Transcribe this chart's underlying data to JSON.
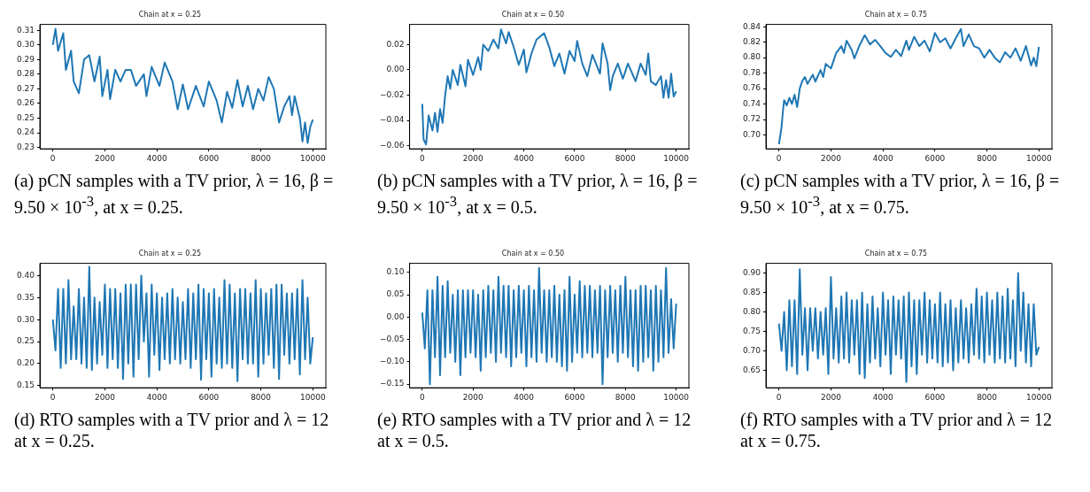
{
  "chart_data": [
    {
      "type": "line",
      "title": "Chain at x = 0.25",
      "marker": "none",
      "xlim": [
        -500,
        10500
      ],
      "xticks": [
        0,
        2000,
        4000,
        6000,
        8000,
        10000
      ],
      "ylim": [
        0.229,
        0.314
      ],
      "yticks": [
        {
          "value": 0.23,
          "label": "0.23"
        },
        {
          "value": 0.24,
          "label": "0.24"
        },
        {
          "value": 0.25,
          "label": "0.25"
        },
        {
          "value": 0.26,
          "label": "0.26"
        },
        {
          "value": 0.27,
          "label": "0.27"
        },
        {
          "value": 0.28,
          "label": "0.28"
        },
        {
          "value": 0.29,
          "label": "0.29"
        },
        {
          "value": 0.3,
          "label": "0.30"
        },
        {
          "value": 0.31,
          "label": "0.31"
        }
      ],
      "x": [
        0,
        100,
        200,
        400,
        500,
        700,
        800,
        1000,
        1200,
        1400,
        1600,
        1800,
        1900,
        2100,
        2200,
        2400,
        2600,
        2800,
        3000,
        3200,
        3500,
        3600,
        3800,
        4100,
        4300,
        4600,
        4800,
        5000,
        5200,
        5500,
        5800,
        6000,
        6300,
        6500,
        6700,
        6900,
        7100,
        7300,
        7500,
        7700,
        7900,
        8100,
        8300,
        8500,
        8700,
        8900,
        9100,
        9200,
        9300,
        9500,
        9600,
        9700,
        9800,
        9900,
        10000
      ],
      "series": [
        {
          "color": "#1f77b4",
          "values": [
            0.3,
            0.311,
            0.296,
            0.308,
            0.283,
            0.296,
            0.275,
            0.267,
            0.29,
            0.293,
            0.275,
            0.292,
            0.265,
            0.283,
            0.263,
            0.283,
            0.275,
            0.283,
            0.283,
            0.272,
            0.28,
            0.265,
            0.285,
            0.272,
            0.288,
            0.275,
            0.256,
            0.273,
            0.256,
            0.272,
            0.258,
            0.275,
            0.262,
            0.247,
            0.268,
            0.257,
            0.276,
            0.258,
            0.272,
            0.256,
            0.27,
            0.262,
            0.278,
            0.27,
            0.247,
            0.258,
            0.265,
            0.252,
            0.265,
            0.25,
            0.234,
            0.247,
            0.233,
            0.244,
            0.249
          ]
        }
      ],
      "annotations": [
        "(a) pCN samples with a TV prior, λ = 16, β = 9.50 × 10$^{-3}$, at x = 0.25."
      ]
    },
    {
      "type": "line",
      "title": "Chain at x = 0.50",
      "marker": "none",
      "xlim": [
        -500,
        10500
      ],
      "xticks": [
        0,
        2000,
        4000,
        6000,
        8000,
        10000
      ],
      "ylim": [
        -0.0625,
        0.036
      ],
      "yticks": [
        {
          "value": -0.06,
          "label": "−0.06"
        },
        {
          "value": -0.04,
          "label": "−0.04"
        },
        {
          "value": -0.02,
          "label": "−0.02"
        },
        {
          "value": 0,
          "label": "0.00"
        },
        {
          "value": 0.02,
          "label": "0.02"
        }
      ],
      "x": [
        0,
        50,
        150,
        250,
        400,
        500,
        600,
        700,
        800,
        900,
        1000,
        1100,
        1200,
        1400,
        1500,
        1700,
        1800,
        2000,
        2200,
        2300,
        2400,
        2600,
        2800,
        3000,
        3100,
        3300,
        3400,
        3600,
        3800,
        4000,
        4100,
        4300,
        4500,
        4800,
        5000,
        5200,
        5400,
        5600,
        5800,
        6000,
        6100,
        6300,
        6500,
        6700,
        7000,
        7100,
        7300,
        7400,
        7500,
        7700,
        7900,
        8100,
        8400,
        8600,
        8800,
        8900,
        9000,
        9200,
        9400,
        9500,
        9600,
        9700,
        9800,
        9900,
        10000
      ],
      "series": [
        {
          "color": "#1f77b4",
          "values": [
            -0.027,
            -0.055,
            -0.059,
            -0.036,
            -0.048,
            -0.034,
            -0.049,
            -0.031,
            -0.042,
            -0.02,
            -0.005,
            -0.015,
            0.0,
            -0.012,
            0.004,
            -0.013,
            0.008,
            -0.004,
            0.01,
            0.0,
            0.02,
            0.015,
            0.024,
            0.017,
            0.032,
            0.021,
            0.03,
            0.018,
            0.004,
            0.016,
            -0.002,
            0.013,
            0.024,
            0.029,
            0.018,
            0.003,
            0.013,
            -0.003,
            0.015,
            0.007,
            0.023,
            0.005,
            -0.005,
            0.012,
            -0.003,
            0.021,
            0.005,
            -0.016,
            -0.005,
            0.005,
            -0.007,
            0.005,
            -0.009,
            0.005,
            -0.004,
            0.013,
            -0.009,
            -0.012,
            -0.005,
            -0.022,
            -0.008,
            -0.022,
            -0.003,
            -0.021,
            -0.017
          ]
        }
      ],
      "annotations": [
        "(b) pCN samples with a TV prior, λ = 16, β = 9.50 × 10$^{-3}$, at x = 0.5."
      ]
    },
    {
      "type": "line",
      "title": "Chain at x = 0.75",
      "marker": "none",
      "xlim": [
        -500,
        10500
      ],
      "xticks": [
        0,
        2000,
        4000,
        6000,
        8000,
        10000
      ],
      "ylim": [
        0.682,
        0.843
      ],
      "yticks": [
        {
          "value": 0.7,
          "label": "0.70"
        },
        {
          "value": 0.72,
          "label": "0.72"
        },
        {
          "value": 0.74,
          "label": "0.74"
        },
        {
          "value": 0.76,
          "label": "0.76"
        },
        {
          "value": 0.78,
          "label": "0.78"
        },
        {
          "value": 0.8,
          "label": "0.80"
        },
        {
          "value": 0.82,
          "label": "0.82"
        },
        {
          "value": 0.84,
          "label": "0.84"
        }
      ],
      "x": [
        0,
        100,
        150,
        200,
        300,
        400,
        500,
        600,
        700,
        800,
        900,
        1000,
        1100,
        1300,
        1400,
        1600,
        1700,
        1800,
        2000,
        2200,
        2400,
        2500,
        2600,
        2800,
        2900,
        3100,
        3300,
        3500,
        3700,
        3900,
        4100,
        4300,
        4500,
        4700,
        4900,
        5000,
        5200,
        5400,
        5600,
        5800,
        6000,
        6200,
        6400,
        6600,
        6800,
        7000,
        7100,
        7300,
        7500,
        7700,
        7900,
        8100,
        8300,
        8500,
        8700,
        8900,
        9100,
        9300,
        9500,
        9700,
        9800,
        9900,
        10000
      ],
      "series": [
        {
          "color": "#1f77b4",
          "values": [
            0.688,
            0.71,
            0.73,
            0.745,
            0.738,
            0.748,
            0.74,
            0.752,
            0.736,
            0.76,
            0.77,
            0.775,
            0.766,
            0.778,
            0.769,
            0.784,
            0.775,
            0.792,
            0.786,
            0.806,
            0.815,
            0.806,
            0.822,
            0.81,
            0.799,
            0.816,
            0.829,
            0.817,
            0.823,
            0.815,
            0.806,
            0.801,
            0.81,
            0.802,
            0.822,
            0.81,
            0.827,
            0.815,
            0.822,
            0.808,
            0.832,
            0.82,
            0.825,
            0.812,
            0.825,
            0.837,
            0.815,
            0.83,
            0.815,
            0.812,
            0.8,
            0.81,
            0.8,
            0.794,
            0.807,
            0.8,
            0.812,
            0.796,
            0.815,
            0.79,
            0.8,
            0.789,
            0.814
          ]
        }
      ],
      "annotations": [
        "(c) pCN samples with a TV prior, λ = 16, β = 9.50 × 10$^{-3}$, at x = 0.75."
      ]
    },
    {
      "type": "line",
      "title": "Chain at x = 0.25",
      "marker": "none",
      "xlim": [
        -500,
        10500
      ],
      "xticks": [
        0,
        2000,
        4000,
        6000,
        8000,
        10000
      ],
      "ylim": [
        0.145,
        0.428
      ],
      "yticks": [
        {
          "value": 0.15,
          "label": "0.15"
        },
        {
          "value": 0.2,
          "label": "0.20"
        },
        {
          "value": 0.25,
          "label": "0.25"
        },
        {
          "value": 0.3,
          "label": "0.30"
        },
        {
          "value": 0.35,
          "label": "0.35"
        },
        {
          "value": 0.4,
          "label": "0.40"
        }
      ],
      "x": [
        0,
        100,
        200,
        300,
        400,
        500,
        600,
        700,
        800,
        900,
        1000,
        1100,
        1200,
        1300,
        1400,
        1500,
        1600,
        1700,
        1800,
        1900,
        2000,
        2100,
        2200,
        2300,
        2400,
        2500,
        2600,
        2700,
        2800,
        2900,
        3000,
        3100,
        3200,
        3300,
        3400,
        3500,
        3600,
        3700,
        3800,
        3900,
        4000,
        4100,
        4200,
        4300,
        4400,
        4500,
        4600,
        4700,
        4800,
        4900,
        5000,
        5100,
        5200,
        5300,
        5400,
        5500,
        5600,
        5700,
        5800,
        5900,
        6000,
        6100,
        6200,
        6300,
        6400,
        6500,
        6600,
        6700,
        6800,
        6900,
        7000,
        7100,
        7200,
        7300,
        7400,
        7500,
        7600,
        7700,
        7800,
        7900,
        8000,
        8100,
        8200,
        8300,
        8400,
        8500,
        8600,
        8700,
        8800,
        8900,
        9000,
        9100,
        9200,
        9300,
        9400,
        9500,
        9600,
        9700,
        9800,
        9900,
        10000
      ],
      "series": [
        {
          "color": "#1f77b4",
          "values": [
            0.3,
            0.23,
            0.37,
            0.19,
            0.37,
            0.2,
            0.39,
            0.21,
            0.33,
            0.21,
            0.37,
            0.2,
            0.35,
            0.19,
            0.42,
            0.185,
            0.35,
            0.2,
            0.34,
            0.22,
            0.38,
            0.19,
            0.37,
            0.21,
            0.37,
            0.19,
            0.36,
            0.165,
            0.38,
            0.2,
            0.38,
            0.17,
            0.38,
            0.21,
            0.4,
            0.25,
            0.36,
            0.17,
            0.38,
            0.22,
            0.36,
            0.185,
            0.35,
            0.21,
            0.36,
            0.2,
            0.37,
            0.21,
            0.35,
            0.2,
            0.34,
            0.21,
            0.37,
            0.19,
            0.36,
            0.21,
            0.38,
            0.163,
            0.37,
            0.21,
            0.36,
            0.17,
            0.37,
            0.2,
            0.35,
            0.19,
            0.39,
            0.2,
            0.38,
            0.19,
            0.36,
            0.16,
            0.37,
            0.21,
            0.37,
            0.2,
            0.36,
            0.2,
            0.39,
            0.17,
            0.37,
            0.2,
            0.36,
            0.22,
            0.37,
            0.19,
            0.38,
            0.165,
            0.38,
            0.22,
            0.36,
            0.2,
            0.36,
            0.21,
            0.37,
            0.175,
            0.39,
            0.21,
            0.35,
            0.2,
            0.26
          ]
        }
      ],
      "annotations": [
        "(d) RTO samples with a TV prior and λ = 12 at x = 0.25."
      ]
    },
    {
      "type": "line",
      "title": "Chain at x = 0.50",
      "marker": "none",
      "xlim": [
        -500,
        10500
      ],
      "xticks": [
        0,
        2000,
        4000,
        6000,
        8000,
        10000
      ],
      "ylim": [
        -0.158,
        0.12
      ],
      "yticks": [
        {
          "value": -0.15,
          "label": "−0.15"
        },
        {
          "value": -0.1,
          "label": "−0.10"
        },
        {
          "value": -0.05,
          "label": "−0.05"
        },
        {
          "value": 0,
          "label": "0.00"
        },
        {
          "value": 0.05,
          "label": "0.05"
        },
        {
          "value": 0.1,
          "label": "0.10"
        }
      ],
      "x": [
        0,
        100,
        200,
        300,
        400,
        500,
        600,
        700,
        800,
        900,
        1000,
        1100,
        1200,
        1300,
        1400,
        1500,
        1600,
        1700,
        1800,
        1900,
        2000,
        2100,
        2200,
        2300,
        2400,
        2500,
        2600,
        2700,
        2800,
        2900,
        3000,
        3100,
        3200,
        3300,
        3400,
        3500,
        3600,
        3700,
        3800,
        3900,
        4000,
        4100,
        4200,
        4300,
        4400,
        4500,
        4600,
        4700,
        4800,
        4900,
        5000,
        5100,
        5200,
        5300,
        5400,
        5500,
        5600,
        5700,
        5800,
        5900,
        6000,
        6100,
        6200,
        6300,
        6400,
        6500,
        6600,
        6700,
        6800,
        6900,
        7000,
        7100,
        7200,
        7300,
        7400,
        7500,
        7600,
        7700,
        7800,
        7900,
        8000,
        8100,
        8200,
        8300,
        8400,
        8500,
        8600,
        8700,
        8800,
        8900,
        9000,
        9100,
        9200,
        9300,
        9400,
        9500,
        9600,
        9700,
        9800,
        9900,
        10000
      ],
      "series": [
        {
          "color": "#1f77b4",
          "values": [
            0.01,
            -0.07,
            0.06,
            -0.15,
            0.06,
            -0.09,
            0.09,
            -0.13,
            0.07,
            -0.09,
            0.08,
            -0.08,
            0.05,
            -0.1,
            0.06,
            -0.13,
            0.06,
            -0.09,
            0.06,
            -0.08,
            0.06,
            -0.09,
            0.05,
            -0.12,
            0.06,
            -0.09,
            0.07,
            -0.08,
            0.06,
            -0.1,
            0.09,
            -0.08,
            0.07,
            -0.09,
            0.07,
            -0.11,
            0.06,
            -0.09,
            0.07,
            -0.08,
            0.06,
            -0.11,
            0.07,
            -0.09,
            0.06,
            -0.1,
            0.11,
            -0.08,
            0.06,
            -0.1,
            0.06,
            -0.09,
            0.07,
            -0.1,
            0.05,
            -0.11,
            0.06,
            -0.12,
            0.09,
            -0.1,
            0.05,
            -0.08,
            0.08,
            -0.09,
            0.07,
            -0.08,
            0.07,
            -0.09,
            0.06,
            -0.08,
            0.07,
            -0.15,
            0.06,
            -0.09,
            0.07,
            -0.08,
            0.06,
            -0.1,
            0.07,
            -0.08,
            0.09,
            -0.09,
            0.06,
            -0.11,
            0.06,
            -0.12,
            0.07,
            -0.1,
            0.07,
            -0.09,
            0.06,
            -0.12,
            0.07,
            -0.1,
            0.06,
            -0.09,
            0.11,
            -0.08,
            0.04,
            -0.07,
            0.03
          ]
        }
      ],
      "annotations": [
        "(e) RTO samples with a TV prior and λ = 12 at x = 0.5."
      ]
    },
    {
      "type": "line",
      "title": "Chain at x = 0.75",
      "marker": "none",
      "xlim": [
        -500,
        10500
      ],
      "xticks": [
        0,
        2000,
        4000,
        6000,
        8000,
        10000
      ],
      "ylim": [
        0.605,
        0.925
      ],
      "yticks": [
        {
          "value": 0.65,
          "label": "0.65"
        },
        {
          "value": 0.7,
          "label": "0.70"
        },
        {
          "value": 0.75,
          "label": "0.75"
        },
        {
          "value": 0.8,
          "label": "0.80"
        },
        {
          "value": 0.85,
          "label": "0.85"
        },
        {
          "value": 0.9,
          "label": "0.90"
        }
      ],
      "x": [
        0,
        100,
        200,
        300,
        400,
        500,
        600,
        700,
        800,
        900,
        1000,
        1100,
        1200,
        1300,
        1400,
        1500,
        1600,
        1700,
        1800,
        1900,
        2000,
        2100,
        2200,
        2300,
        2400,
        2500,
        2600,
        2700,
        2800,
        2900,
        3000,
        3100,
        3200,
        3300,
        3400,
        3500,
        3600,
        3700,
        3800,
        3900,
        4000,
        4100,
        4200,
        4300,
        4400,
        4500,
        4600,
        4700,
        4800,
        4900,
        5000,
        5100,
        5200,
        5300,
        5400,
        5500,
        5600,
        5700,
        5800,
        5900,
        6000,
        6100,
        6200,
        6300,
        6400,
        6500,
        6600,
        6700,
        6800,
        6900,
        7000,
        7100,
        7200,
        7300,
        7400,
        7500,
        7600,
        7700,
        7800,
        7900,
        8000,
        8100,
        8200,
        8300,
        8400,
        8500,
        8600,
        8700,
        8800,
        8900,
        9000,
        9100,
        9200,
        9300,
        9400,
        9500,
        9600,
        9700,
        9800,
        9900,
        10000
      ],
      "series": [
        {
          "color": "#1f77b4",
          "values": [
            0.77,
            0.7,
            0.8,
            0.65,
            0.83,
            0.66,
            0.83,
            0.64,
            0.91,
            0.69,
            0.81,
            0.65,
            0.81,
            0.7,
            0.81,
            0.68,
            0.8,
            0.69,
            0.81,
            0.64,
            0.89,
            0.68,
            0.81,
            0.67,
            0.84,
            0.68,
            0.85,
            0.67,
            0.83,
            0.69,
            0.83,
            0.64,
            0.85,
            0.63,
            0.82,
            0.67,
            0.84,
            0.68,
            0.81,
            0.66,
            0.85,
            0.69,
            0.83,
            0.64,
            0.84,
            0.69,
            0.83,
            0.68,
            0.84,
            0.62,
            0.85,
            0.66,
            0.83,
            0.64,
            0.83,
            0.69,
            0.85,
            0.67,
            0.83,
            0.68,
            0.82,
            0.67,
            0.85,
            0.66,
            0.82,
            0.67,
            0.83,
            0.65,
            0.81,
            0.67,
            0.83,
            0.68,
            0.81,
            0.67,
            0.82,
            0.69,
            0.86,
            0.68,
            0.84,
            0.67,
            0.85,
            0.69,
            0.83,
            0.67,
            0.85,
            0.68,
            0.84,
            0.67,
            0.86,
            0.68,
            0.83,
            0.66,
            0.9,
            0.7,
            0.85,
            0.67,
            0.82,
            0.66,
            0.82,
            0.69,
            0.71
          ]
        }
      ],
      "annotations": [
        "(f) RTO samples with a TV prior and λ = 12 at x = 0.75."
      ]
    }
  ]
}
